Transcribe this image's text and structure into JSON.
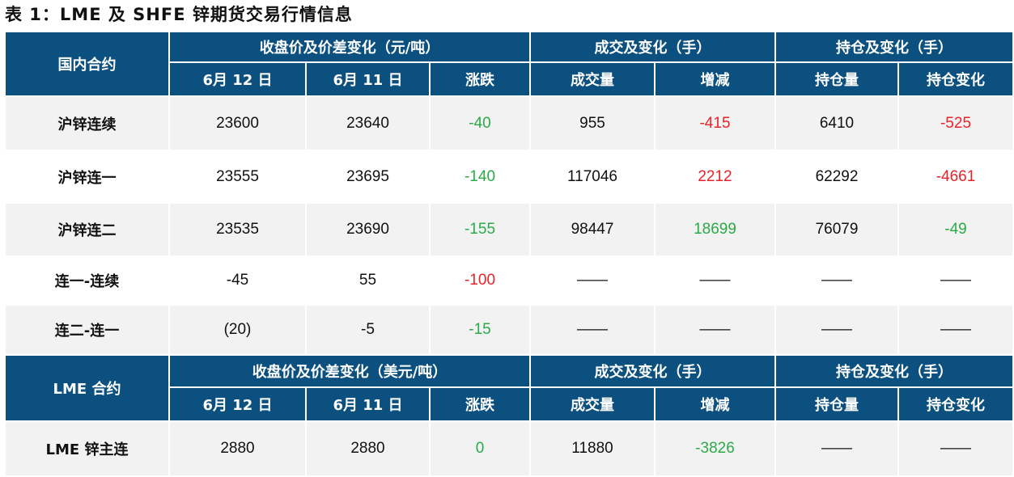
{
  "title": "表 1：LME 及 SHFE 锌期货交易行情信息",
  "colors": {
    "header_bg": "#0c5080",
    "positive": "#e8232a",
    "negative": "#2aab48"
  },
  "domestic": {
    "header": {
      "contract": "国内合约",
      "price_group": "收盘价及价差变化（元/吨）",
      "volume_group": "成交及变化（手）",
      "oi_group": "持仓及变化（手）",
      "cols": [
        "6月 12 日",
        "6月 11 日",
        "涨跌",
        "成交量",
        "增减",
        "持仓量",
        "持仓变化"
      ]
    },
    "rows": [
      {
        "name": "沪锌连续",
        "cells": [
          "23600",
          "23640",
          "-40",
          "955",
          "-415",
          "6410",
          "-525"
        ],
        "tone": [
          "",
          "",
          "dn",
          "",
          "up",
          "",
          "up"
        ]
      },
      {
        "name": "沪锌连一",
        "cells": [
          "23555",
          "23695",
          "-140",
          "117046",
          "2212",
          "62292",
          "-4661"
        ],
        "tone": [
          "",
          "",
          "dn",
          "",
          "up",
          "",
          "up"
        ]
      },
      {
        "name": "沪锌连二",
        "cells": [
          "23535",
          "23690",
          "-155",
          "98447",
          "18699",
          "76079",
          "-49"
        ],
        "tone": [
          "",
          "",
          "dn",
          "",
          "dn",
          "",
          "dn"
        ]
      },
      {
        "name": "连一-连续",
        "cells": [
          "-45",
          "55",
          "-100",
          "——",
          "——",
          "——",
          "——"
        ],
        "tone": [
          "",
          "",
          "up",
          "",
          "",
          "",
          ""
        ]
      },
      {
        "name": "连二-连一",
        "cells": [
          "(20)",
          "-5",
          "-15",
          "——",
          "——",
          "——",
          "——"
        ],
        "tone": [
          "",
          "",
          "dn",
          "",
          "",
          "",
          ""
        ]
      }
    ]
  },
  "lme": {
    "header": {
      "contract": "LME 合约",
      "price_group": "收盘价及价差变化（美元/吨）",
      "volume_group": "成交及变化（手）",
      "oi_group": "持仓及变化（手）",
      "cols": [
        "6月 12 日",
        "6月 11 日",
        "涨跌",
        "成交量",
        "增减",
        "持仓量",
        "持仓变化"
      ]
    },
    "rows": [
      {
        "name": "LME 锌主连",
        "cells": [
          "2880",
          "2880",
          "0",
          "11880",
          "-3826",
          "——",
          "——"
        ],
        "tone": [
          "",
          "",
          "dn",
          "",
          "dn",
          "",
          ""
        ]
      }
    ]
  }
}
